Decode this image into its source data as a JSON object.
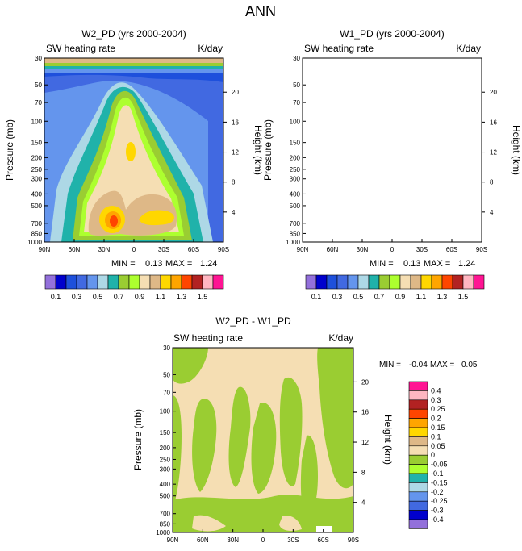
{
  "page_title": "ANN",
  "chart_data": [
    {
      "type": "heatmap",
      "title": "W2_PD (yrs 2000-2004)",
      "left_subtitle": "SW heating rate",
      "right_subtitle": "K/day",
      "xlabel": "",
      "ylabel": "Pressure (mb)",
      "ylabel_right": "Height (km)",
      "x_ticks": [
        "90N",
        "60N",
        "30N",
        "0",
        "30S",
        "60S",
        "90S"
      ],
      "y_ticks": [
        30,
        50,
        70,
        100,
        150,
        200,
        250,
        300,
        400,
        500,
        700,
        850,
        1000
      ],
      "height_ticks": [
        20,
        16,
        12,
        8,
        4
      ],
      "ylim": [
        1000,
        30
      ],
      "stats": {
        "min_label": "MIN =",
        "min": "0.13",
        "max_label": "MAX =",
        "max": "1.24"
      },
      "label_bar_labels": [
        "0.1",
        "0.3",
        "0.5",
        "0.7",
        "0.9",
        "1.1",
        "1.3",
        "1.5"
      ],
      "label_bar_colors": [
        "#9370db",
        "#0000cd",
        "#1e50dc",
        "#4169e1",
        "#6495ed",
        "#add8e6",
        "#20b2aa",
        "#9acd32",
        "#adff2f",
        "#f5deb3",
        "#deb887",
        "#ffd700",
        "#ffa500",
        "#ff4500",
        "#b22222",
        "#ffb6c1",
        "#ff1493"
      ]
    },
    {
      "type": "heatmap",
      "title": "W1_PD (yrs 2000-2004)",
      "left_subtitle": "SW heating rate",
      "right_subtitle": "K/day",
      "xlabel": "",
      "ylabel": "Pressure (mb)",
      "ylabel_right": "Height (km)",
      "x_ticks": [
        "90N",
        "60N",
        "30N",
        "0",
        "30S",
        "60S",
        "90S"
      ],
      "y_ticks": [
        30,
        50,
        70,
        100,
        150,
        200,
        250,
        300,
        400,
        500,
        700,
        850,
        1000
      ],
      "height_ticks": [
        20,
        16,
        12,
        8,
        4
      ],
      "ylim": [
        1000,
        30
      ],
      "stats": {
        "min_label": "MIN =",
        "min": "0.13",
        "max_label": "MAX =",
        "max": "1.24"
      },
      "label_bar_labels": [
        "0.1",
        "0.3",
        "0.5",
        "0.7",
        "0.9",
        "1.1",
        "1.3",
        "1.5"
      ]
    },
    {
      "type": "heatmap",
      "title": "W2_PD - W1_PD",
      "left_subtitle": "SW heating rate",
      "right_subtitle": "K/day",
      "xlabel": "",
      "ylabel": "Pressure (mb)",
      "ylabel_right": "Height (km)",
      "x_ticks": [
        "90N",
        "60N",
        "30N",
        "0",
        "30S",
        "60S",
        "90S"
      ],
      "y_ticks": [
        30,
        50,
        70,
        100,
        150,
        200,
        250,
        300,
        400,
        500,
        700,
        850,
        1000
      ],
      "height_ticks": [
        20,
        16,
        12,
        8,
        4
      ],
      "ylim": [
        1000,
        30
      ],
      "stats": {
        "min_label": "MIN =",
        "min": "-0.04",
        "max_label": "MAX =",
        "max": "0.05"
      },
      "label_bar_labels": [
        "0.4",
        "0.3",
        "0.25",
        "0.2",
        "0.15",
        "0.1",
        "0.05",
        "0",
        "-0.05",
        "-0.1",
        "-0.15",
        "-0.2",
        "-0.25",
        "-0.3",
        "-0.4"
      ]
    }
  ],
  "diff_colors": [
    "#ff1493",
    "#ffb6c1",
    "#b22222",
    "#ff4500",
    "#ffa500",
    "#ffd700",
    "#deb887",
    "#f5deb3",
    "#9acd32",
    "#adff2f",
    "#20b2aa",
    "#add8e6",
    "#6495ed",
    "#4169e1",
    "#0000cd",
    "#9370db"
  ]
}
